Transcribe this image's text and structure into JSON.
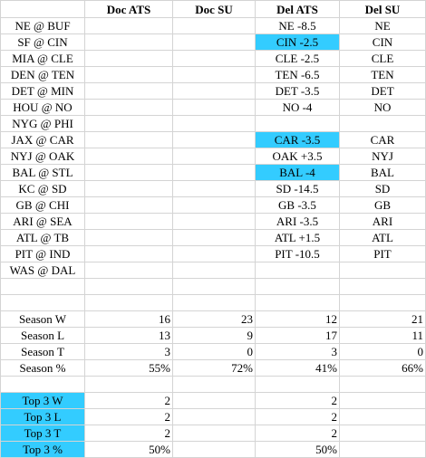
{
  "headers": [
    "",
    "Doc ATS",
    "Doc SU",
    "Del ATS",
    "Del SU"
  ],
  "games": [
    {
      "matchup": "NE @ BUF",
      "doc_ats": "",
      "doc_su": "",
      "del_ats": "NE -8.5",
      "del_su": "NE"
    },
    {
      "matchup": "SF @ CIN",
      "doc_ats": "",
      "doc_su": "",
      "del_ats": "CIN -2.5",
      "del_su": "CIN"
    },
    {
      "matchup": "MIA @ CLE",
      "doc_ats": "",
      "doc_su": "",
      "del_ats": "CLE -2.5",
      "del_su": "CLE"
    },
    {
      "matchup": "DEN @ TEN",
      "doc_ats": "",
      "doc_su": "",
      "del_ats": "TEN -6.5",
      "del_su": "TEN"
    },
    {
      "matchup": "DET @ MIN",
      "doc_ats": "",
      "doc_su": "",
      "del_ats": "DET -3.5",
      "del_su": "DET"
    },
    {
      "matchup": "HOU @ NO",
      "doc_ats": "",
      "doc_su": "",
      "del_ats": "NO -4",
      "del_su": "NO"
    },
    {
      "matchup": "NYG @ PHI",
      "doc_ats": "",
      "doc_su": "",
      "del_ats": "",
      "del_su": ""
    },
    {
      "matchup": "JAX @ CAR",
      "doc_ats": "",
      "doc_su": "",
      "del_ats": "CAR -3.5",
      "del_su": "CAR"
    },
    {
      "matchup": "NYJ @ OAK",
      "doc_ats": "",
      "doc_su": "",
      "del_ats": "OAK +3.5",
      "del_su": "NYJ"
    },
    {
      "matchup": "BAL @ STL",
      "doc_ats": "",
      "doc_su": "",
      "del_ats": "BAL -4",
      "del_su": "BAL"
    },
    {
      "matchup": "KC @ SD",
      "doc_ats": "",
      "doc_su": "",
      "del_ats": "SD -14.5",
      "del_su": "SD"
    },
    {
      "matchup": "GB @ CHI",
      "doc_ats": "",
      "doc_su": "",
      "del_ats": "GB -3.5",
      "del_su": "GB"
    },
    {
      "matchup": "ARI @ SEA",
      "doc_ats": "",
      "doc_su": "",
      "del_ats": "ARI -3.5",
      "del_su": "ARI"
    },
    {
      "matchup": "ATL @ TB",
      "doc_ats": "",
      "doc_su": "",
      "del_ats": "ATL +1.5",
      "del_su": "ATL"
    },
    {
      "matchup": "PIT @ IND",
      "doc_ats": "",
      "doc_su": "",
      "del_ats": "PIT -10.5",
      "del_su": "PIT"
    },
    {
      "matchup": "WAS @ DAL",
      "doc_ats": "",
      "doc_su": "",
      "del_ats": "",
      "del_su": ""
    }
  ],
  "season": [
    {
      "label": "Season W",
      "doc_ats": "16",
      "doc_su": "23",
      "del_ats": "12",
      "del_su": "21"
    },
    {
      "label": "Season L",
      "doc_ats": "13",
      "doc_su": "9",
      "del_ats": "17",
      "del_su": "11"
    },
    {
      "label": "Season T",
      "doc_ats": "3",
      "doc_su": "0",
      "del_ats": "3",
      "del_su": "0"
    },
    {
      "label": "Season %",
      "doc_ats": "55%",
      "doc_su": "72%",
      "del_ats": "41%",
      "del_su": "66%"
    }
  ],
  "top3": [
    {
      "label": "Top 3 W",
      "doc_ats": "2",
      "del_ats": "2"
    },
    {
      "label": "Top 3 L",
      "doc_ats": "2",
      "del_ats": "2"
    },
    {
      "label": "Top 3 T",
      "doc_ats": "2",
      "del_ats": "2"
    },
    {
      "label": "Top 3 %",
      "doc_ats": "50%",
      "del_ats": "50%"
    }
  ],
  "colors": {
    "highlight": "#33ccff",
    "gridline": "#d4d4d4"
  }
}
